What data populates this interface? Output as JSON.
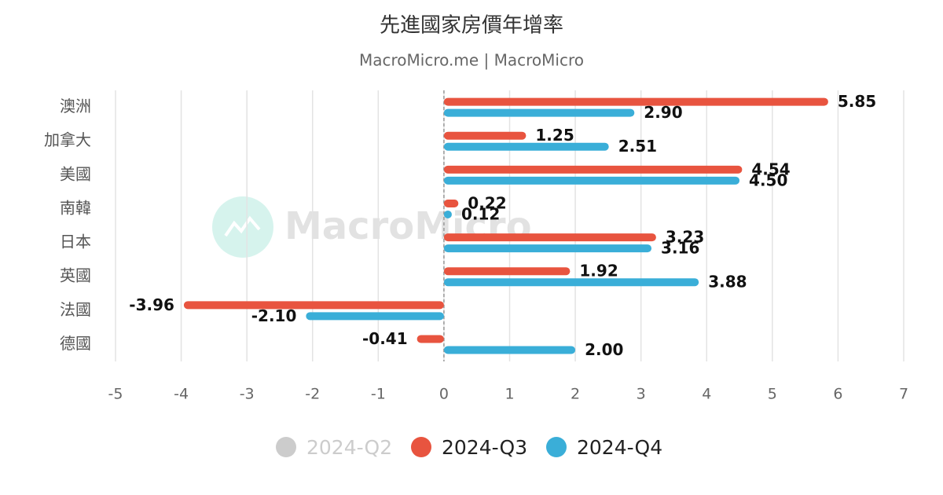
{
  "chart_data": {
    "type": "hbar",
    "title": "先進國家房價年增率",
    "subtitle": "MacroMicro.me | MacroMicro",
    "watermark": "MacroMicro",
    "categories": [
      "澳洲",
      "加拿大",
      "美國",
      "南韓",
      "日本",
      "英國",
      "法國",
      "德國"
    ],
    "series": [
      {
        "name": "2024-Q2",
        "color": "#cccccc",
        "visible": false,
        "values": [
          null,
          null,
          null,
          null,
          null,
          null,
          null,
          null
        ]
      },
      {
        "name": "2024-Q3",
        "color": "#e8543f",
        "visible": true,
        "values": [
          5.85,
          1.25,
          4.54,
          0.22,
          3.23,
          1.92,
          -3.96,
          -0.41
        ],
        "value_labels": [
          "5.85",
          "1.25",
          "4.54",
          "0.22",
          "3.23",
          "1.92",
          "-3.96",
          "-0.41"
        ]
      },
      {
        "name": "2024-Q4",
        "color": "#3aaed8",
        "visible": true,
        "values": [
          2.9,
          2.51,
          4.5,
          0.12,
          3.16,
          3.88,
          -2.1,
          2.0
        ],
        "value_labels": [
          "2.90",
          "2.51",
          "4.50",
          "0.12",
          "3.16",
          "3.88",
          "-2.10",
          "2.00"
        ]
      }
    ],
    "xlim": [
      -5,
      7
    ],
    "xticks": [
      -5,
      -4,
      -3,
      -2,
      -1,
      0,
      1,
      2,
      3,
      4,
      5,
      6,
      7
    ],
    "grid": true,
    "legend": "bottom"
  }
}
